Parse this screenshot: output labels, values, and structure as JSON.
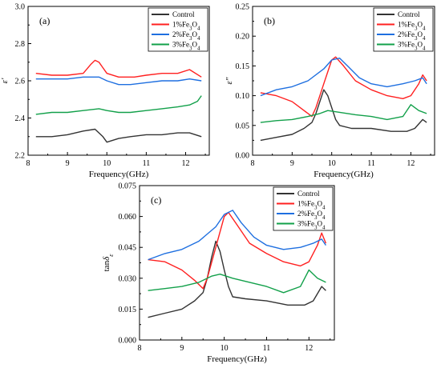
{
  "figure": {
    "panels": [
      "(a)",
      "(b)",
      "(c)"
    ]
  },
  "colors": {
    "Control": "#333333",
    "1%Fe3O4": "#ff2020",
    "2%Fe3O4": "#1e6fe0",
    "3%Fe3O4": "#12a04a"
  },
  "chart_data": [
    {
      "type": "line",
      "panel_label": "(a)",
      "xlabel": "Frequency(GHz)",
      "ylabel": "ε′",
      "xlim": [
        8,
        12.6
      ],
      "ylim": [
        2.2,
        3.0
      ],
      "xticks": [
        "8",
        "9",
        "10",
        "11",
        "12"
      ],
      "yticks": [
        "2.2",
        "2.4",
        "2.6",
        "2.8",
        "3.0"
      ],
      "ytick_values": [
        2.2,
        2.4,
        2.6,
        2.8,
        3.0
      ],
      "legend": "top-right",
      "grid": false,
      "series": [
        {
          "name": "Control",
          "x": [
            8.2,
            8.6,
            9.0,
            9.4,
            9.7,
            9.9,
            10.0,
            10.3,
            10.6,
            11.0,
            11.4,
            11.8,
            12.1,
            12.4
          ],
          "y": [
            2.3,
            2.3,
            2.31,
            2.33,
            2.34,
            2.3,
            2.27,
            2.29,
            2.3,
            2.31,
            2.31,
            2.32,
            2.32,
            2.3
          ]
        },
        {
          "name": "1%Fe3O4",
          "x": [
            8.2,
            8.6,
            9.0,
            9.4,
            9.6,
            9.7,
            9.8,
            10.0,
            10.3,
            10.7,
            11.0,
            11.4,
            11.8,
            12.1,
            12.4
          ],
          "y": [
            2.64,
            2.63,
            2.63,
            2.64,
            2.69,
            2.71,
            2.7,
            2.64,
            2.62,
            2.62,
            2.63,
            2.64,
            2.64,
            2.66,
            2.62
          ]
        },
        {
          "name": "2%Fe3O4",
          "x": [
            8.2,
            8.6,
            9.0,
            9.4,
            9.8,
            10.0,
            10.3,
            10.6,
            11.0,
            11.4,
            11.8,
            12.1,
            12.4
          ],
          "y": [
            2.61,
            2.61,
            2.61,
            2.62,
            2.62,
            2.6,
            2.58,
            2.58,
            2.59,
            2.6,
            2.6,
            2.61,
            2.6
          ]
        },
        {
          "name": "3%Fe3O4",
          "x": [
            8.2,
            8.6,
            9.0,
            9.4,
            9.8,
            10.0,
            10.3,
            10.6,
            11.0,
            11.4,
            11.8,
            12.1,
            12.3,
            12.4
          ],
          "y": [
            2.42,
            2.43,
            2.43,
            2.44,
            2.45,
            2.44,
            2.43,
            2.43,
            2.44,
            2.45,
            2.46,
            2.47,
            2.49,
            2.52
          ]
        }
      ]
    },
    {
      "type": "line",
      "panel_label": "(b)",
      "xlabel": "Frequency(GHz)",
      "ylabel": "ε″",
      "xlim": [
        8,
        12.6
      ],
      "ylim": [
        0.0,
        0.25
      ],
      "xticks": [
        "8",
        "9",
        "10",
        "11",
        "12"
      ],
      "yticks": [
        "0.00",
        "0.05",
        "0.10",
        "0.15",
        "0.20",
        "0.25"
      ],
      "ytick_values": [
        0.0,
        0.05,
        0.1,
        0.15,
        0.2,
        0.25
      ],
      "legend": "top-right",
      "grid": false,
      "series": [
        {
          "name": "Control",
          "x": [
            8.2,
            8.6,
            9.0,
            9.3,
            9.5,
            9.6,
            9.7,
            9.8,
            9.9,
            10.0,
            10.1,
            10.2,
            10.5,
            11.0,
            11.5,
            11.9,
            12.1,
            12.3,
            12.4
          ],
          "y": [
            0.025,
            0.03,
            0.035,
            0.045,
            0.055,
            0.07,
            0.09,
            0.11,
            0.1,
            0.08,
            0.06,
            0.05,
            0.045,
            0.045,
            0.04,
            0.04,
            0.045,
            0.06,
            0.055
          ]
        },
        {
          "name": "1%Fe3O4",
          "x": [
            8.2,
            8.6,
            9.0,
            9.3,
            9.5,
            9.6,
            9.8,
            10.0,
            10.1,
            10.3,
            10.6,
            11.0,
            11.4,
            11.8,
            12.0,
            12.2,
            12.3,
            12.4
          ],
          "y": [
            0.105,
            0.1,
            0.09,
            0.075,
            0.065,
            0.08,
            0.12,
            0.16,
            0.165,
            0.15,
            0.125,
            0.11,
            0.1,
            0.095,
            0.1,
            0.12,
            0.135,
            0.125
          ]
        },
        {
          "name": "2%Fe3O4",
          "x": [
            8.2,
            8.6,
            9.0,
            9.4,
            9.8,
            10.0,
            10.2,
            10.4,
            10.7,
            11.0,
            11.4,
            11.8,
            12.1,
            12.3,
            12.4
          ],
          "y": [
            0.1,
            0.11,
            0.115,
            0.125,
            0.145,
            0.16,
            0.163,
            0.15,
            0.13,
            0.12,
            0.115,
            0.12,
            0.125,
            0.13,
            0.12
          ]
        },
        {
          "name": "3%Fe3O4",
          "x": [
            8.2,
            8.6,
            9.0,
            9.4,
            9.7,
            9.9,
            10.2,
            10.6,
            11.0,
            11.4,
            11.8,
            12.0,
            12.2,
            12.4
          ],
          "y": [
            0.055,
            0.058,
            0.06,
            0.065,
            0.07,
            0.075,
            0.072,
            0.068,
            0.065,
            0.06,
            0.065,
            0.085,
            0.075,
            0.07
          ]
        }
      ]
    },
    {
      "type": "line",
      "panel_label": "(c)",
      "xlabel": "Frequency(GHz)",
      "ylabel": "tanδε",
      "xlim": [
        8,
        12.6
      ],
      "ylim": [
        0.0,
        0.075
      ],
      "xticks": [
        "8",
        "9",
        "10",
        "11",
        "12"
      ],
      "yticks": [
        "0.000",
        "0.015",
        "0.030",
        "0.045",
        "0.060",
        "0.075"
      ],
      "ytick_values": [
        0.0,
        0.015,
        0.03,
        0.045,
        0.06,
        0.075
      ],
      "legend": "top-right",
      "grid": false,
      "series": [
        {
          "name": "Control",
          "x": [
            8.2,
            8.6,
            9.0,
            9.3,
            9.5,
            9.6,
            9.7,
            9.8,
            9.9,
            10.0,
            10.1,
            10.2,
            10.5,
            11.0,
            11.5,
            11.9,
            12.1,
            12.3,
            12.4
          ],
          "y": [
            0.011,
            0.013,
            0.015,
            0.019,
            0.023,
            0.03,
            0.04,
            0.048,
            0.043,
            0.034,
            0.026,
            0.021,
            0.02,
            0.019,
            0.017,
            0.017,
            0.019,
            0.026,
            0.024
          ]
        },
        {
          "name": "1%Fe3O4",
          "x": [
            8.2,
            8.6,
            9.0,
            9.3,
            9.5,
            9.6,
            9.8,
            10.0,
            10.1,
            10.3,
            10.6,
            11.0,
            11.4,
            11.8,
            12.0,
            12.2,
            12.3,
            12.4
          ],
          "y": [
            0.039,
            0.038,
            0.034,
            0.029,
            0.025,
            0.03,
            0.045,
            0.06,
            0.062,
            0.056,
            0.047,
            0.042,
            0.038,
            0.036,
            0.038,
            0.046,
            0.052,
            0.047
          ]
        },
        {
          "name": "2%Fe3O4",
          "x": [
            8.2,
            8.6,
            9.0,
            9.4,
            9.8,
            10.0,
            10.2,
            10.4,
            10.7,
            11.0,
            11.4,
            11.8,
            12.1,
            12.3,
            12.4
          ],
          "y": [
            0.039,
            0.042,
            0.044,
            0.048,
            0.055,
            0.061,
            0.063,
            0.057,
            0.05,
            0.046,
            0.044,
            0.045,
            0.047,
            0.049,
            0.046
          ]
        },
        {
          "name": "3%Fe3O4",
          "x": [
            8.2,
            8.6,
            9.0,
            9.4,
            9.7,
            9.9,
            10.2,
            10.6,
            11.0,
            11.4,
            11.8,
            12.0,
            12.2,
            12.4
          ],
          "y": [
            0.024,
            0.025,
            0.026,
            0.028,
            0.031,
            0.032,
            0.03,
            0.028,
            0.026,
            0.023,
            0.026,
            0.034,
            0.03,
            0.028
          ]
        }
      ]
    }
  ]
}
